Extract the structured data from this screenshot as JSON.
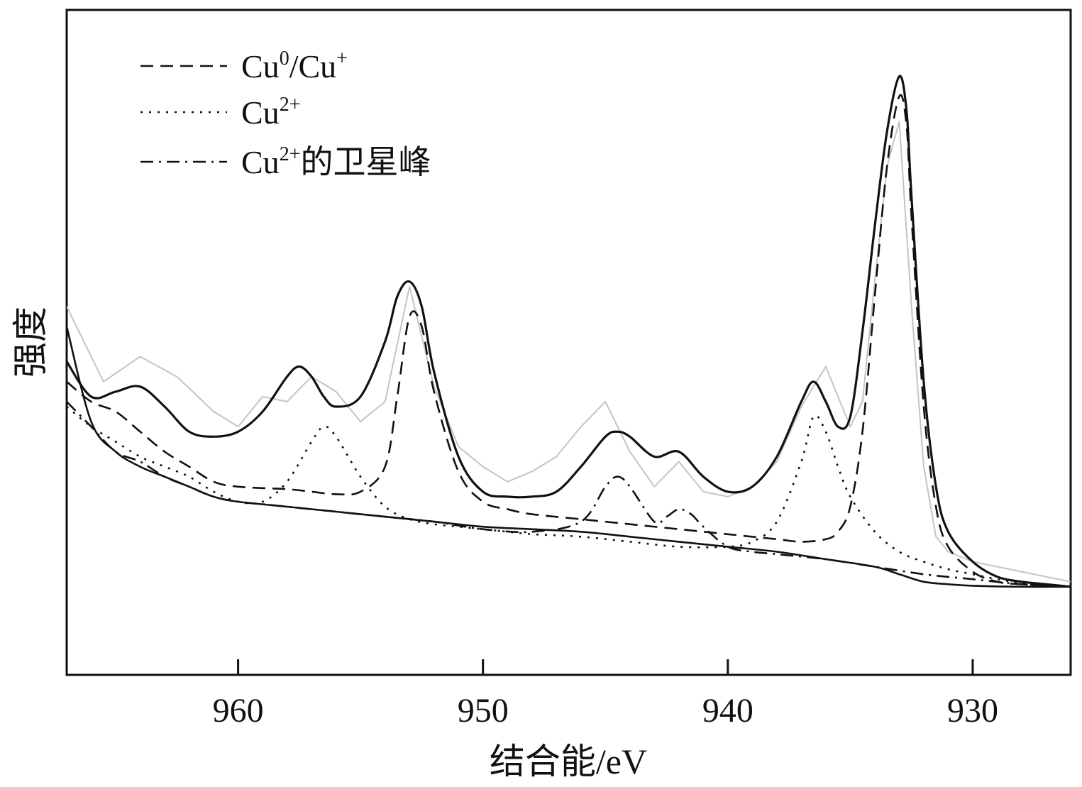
{
  "chart_data": {
    "type": "line",
    "title": "",
    "xlabel": "结合能/eV",
    "ylabel": "强度",
    "xlim": [
      967,
      926
    ],
    "ylim": [
      0,
      100
    ],
    "x_reversed": true,
    "xticks": [
      960,
      950,
      940,
      930
    ],
    "xtick_labels": [
      "960",
      "950",
      "940",
      "930"
    ],
    "y_tick_labels_shown": false,
    "grid": false,
    "legend_position": "top-left",
    "legend": [
      {
        "base": "Cu",
        "sup1": "0",
        "mid": "/Cu",
        "sup2": "+",
        "suffix": "",
        "style": "dashed"
      },
      {
        "base": "Cu",
        "sup1": "2+",
        "mid": "",
        "sup2": "",
        "suffix": "",
        "style": "dotted"
      },
      {
        "base": "Cu",
        "sup1": "2+",
        "mid": "",
        "sup2": "",
        "suffix": "的卫星峰",
        "style": "dashdot"
      }
    ],
    "series": [
      {
        "role": "raw",
        "color": "#c9c2c2",
        "x": [
          967.0,
          965.5,
          964.0,
          962.5,
          961.0,
          960.0,
          959.0,
          958.0,
          957.0,
          956.0,
          955.0,
          954.0,
          953.0,
          952.0,
          951.0,
          950.0,
          949.0,
          948.0,
          947.0,
          946.0,
          945.0,
          944.0,
          943.0,
          942.0,
          941.0,
          940.0,
          939.0,
          938.0,
          937.0,
          936.0,
          935.5,
          935.0,
          934.5,
          934.0,
          933.5,
          933.0,
          932.5,
          932.0,
          931.5,
          931.0,
          930.0,
          929.0,
          928.0,
          927.0,
          926.0
        ],
        "y": [
          60.0,
          45.0,
          50.0,
          46.0,
          39.0,
          36.0,
          42.0,
          41.0,
          46.0,
          43.0,
          37.0,
          41.0,
          64.0,
          44.0,
          32.0,
          28.0,
          25.0,
          27.0,
          30.0,
          36.0,
          41.0,
          31.0,
          24.0,
          29.0,
          23.0,
          22.0,
          24.0,
          29.0,
          40.0,
          48.0,
          42.0,
          36.0,
          41.0,
          65.0,
          88.0,
          97.0,
          60.0,
          28.0,
          14.0,
          11.0,
          9.0,
          8.0,
          7.0,
          6.0,
          5.0
        ]
      },
      {
        "role": "fit_envelope",
        "style": "solid",
        "x": [
          967.0,
          966.0,
          965.0,
          964.0,
          963.0,
          962.0,
          961.0,
          960.0,
          959.0,
          958.0,
          957.5,
          957.0,
          956.5,
          956.0,
          955.0,
          954.0,
          953.5,
          953.0,
          952.5,
          952.0,
          951.0,
          950.0,
          949.0,
          948.0,
          947.0,
          946.0,
          945.0,
          944.5,
          944.0,
          943.0,
          942.0,
          941.0,
          940.0,
          939.0,
          938.0,
          937.0,
          936.5,
          936.0,
          935.5,
          935.0,
          934.5,
          934.0,
          933.5,
          933.0,
          932.7,
          932.5,
          932.0,
          931.5,
          931.0,
          930.0,
          929.0,
          928.0,
          927.0,
          926.0
        ],
        "y": [
          49.0,
          42.0,
          43.0,
          44.0,
          40.0,
          35.0,
          34.0,
          35.0,
          39.0,
          46.0,
          48.0,
          46.0,
          42.0,
          40.0,
          42.0,
          53.0,
          62.0,
          65.0,
          60.0,
          47.0,
          30.0,
          23.0,
          22.0,
          22.0,
          23.0,
          28.0,
          34.0,
          35.0,
          34.0,
          30.0,
          31.0,
          26.0,
          23.0,
          24.0,
          30.0,
          41.0,
          45.0,
          41.0,
          36.0,
          38.0,
          55.0,
          76.0,
          95.0,
          106.0,
          99.0,
          82.0,
          45.0,
          24.0,
          15.0,
          9.0,
          6.0,
          5.0,
          4.5,
          4.0
        ]
      },
      {
        "role": "component",
        "name_ref": "Cu0/Cu+",
        "style": "dashed",
        "x": [
          967.0,
          966.0,
          965.0,
          964.0,
          963.0,
          962.0,
          961.0,
          960.0,
          958.0,
          957.0,
          956.0,
          955.0,
          954.0,
          953.5,
          953.0,
          952.5,
          952.0,
          951.0,
          950.0,
          949.0,
          948.0,
          946.0,
          944.0,
          942.0,
          940.0,
          938.0,
          937.0,
          936.0,
          935.5,
          935.0,
          934.5,
          934.0,
          933.5,
          933.0,
          932.7,
          932.5,
          932.0,
          931.5,
          931.0,
          930.0,
          929.0,
          928.0,
          926.0
        ],
        "y": [
          45.0,
          41.0,
          39.0,
          35.0,
          31.0,
          28.0,
          25.0,
          24.0,
          23.5,
          23.0,
          22.5,
          23.0,
          28.0,
          42.0,
          58.0,
          56.0,
          43.0,
          27.0,
          21.0,
          19.5,
          18.5,
          17.5,
          16.5,
          15.5,
          14.5,
          13.5,
          13.0,
          13.5,
          15.0,
          20.0,
          35.0,
          62.0,
          88.0,
          102.0,
          96.0,
          78.0,
          40.0,
          20.0,
          12.0,
          7.0,
          5.0,
          4.5,
          4.0
        ]
      },
      {
        "role": "component",
        "name_ref": "Cu2+",
        "style": "dotted",
        "x": [
          967.0,
          966.0,
          965.0,
          964.0,
          963.0,
          962.0,
          961.0,
          960.0,
          959.0,
          958.0,
          957.0,
          956.5,
          956.0,
          955.0,
          954.0,
          953.0,
          952.0,
          951.0,
          950.0,
          949.0,
          948.0,
          946.0,
          944.0,
          942.0,
          940.0,
          939.0,
          938.0,
          937.0,
          936.5,
          936.0,
          935.5,
          935.0,
          934.0,
          933.0,
          932.0,
          931.0,
          930.0,
          929.0,
          928.0,
          926.0
        ],
        "y": [
          40.0,
          36.0,
          33.0,
          30.0,
          28.0,
          26.0,
          23.0,
          21.0,
          21.0,
          25.0,
          33.0,
          36.0,
          34.0,
          26.0,
          20.0,
          17.5,
          16.5,
          16.0,
          15.5,
          15.0,
          14.5,
          14.0,
          13.0,
          12.0,
          12.0,
          13.0,
          17.0,
          29.0,
          38.0,
          35.0,
          28.0,
          22.0,
          15.0,
          11.0,
          9.0,
          7.5,
          6.5,
          5.5,
          4.8,
          4.0
        ]
      },
      {
        "role": "component",
        "name_ref": "Cu2+ satellite",
        "style": "dashdot",
        "x": [
          967.0,
          966.0,
          965.0,
          964.0,
          963.0,
          962.0,
          961.0,
          960.0,
          959.0,
          958.0,
          956.0,
          954.0,
          952.0,
          950.0,
          948.0,
          946.0,
          945.0,
          944.5,
          944.0,
          943.0,
          942.5,
          942.0,
          941.5,
          941.0,
          940.0,
          939.0,
          938.0,
          936.0,
          934.0,
          932.0,
          930.0,
          928.0,
          926.0
        ],
        "y": [
          41.0,
          36.0,
          31.0,
          29.0,
          26.0,
          24.0,
          22.0,
          21.0,
          20.5,
          20.0,
          19.0,
          18.0,
          17.0,
          15.5,
          15.0,
          17.0,
          24.0,
          26.0,
          24.0,
          17.0,
          18.0,
          19.5,
          18.5,
          16.0,
          12.0,
          11.0,
          10.5,
          9.5,
          8.0,
          6.5,
          5.5,
          4.5,
          4.0
        ]
      },
      {
        "role": "background",
        "style": "solid",
        "x": [
          967.0,
          966.0,
          965.0,
          964.0,
          963.0,
          962.0,
          961.0,
          960.0,
          958.0,
          956.0,
          954.0,
          952.0,
          950.0,
          948.0,
          946.0,
          944.0,
          942.0,
          940.0,
          938.0,
          936.0,
          934.0,
          933.0,
          932.0,
          931.0,
          930.0,
          928.0,
          926.0
        ],
        "y": [
          56.0,
          37.0,
          31.0,
          28.0,
          26.0,
          24.0,
          22.0,
          21.0,
          20.0,
          19.0,
          18.0,
          17.0,
          16.0,
          15.5,
          15.0,
          14.0,
          13.0,
          12.0,
          11.0,
          9.5,
          8.0,
          6.5,
          5.0,
          4.5,
          4.2,
          4.0,
          4.0
        ]
      }
    ]
  }
}
